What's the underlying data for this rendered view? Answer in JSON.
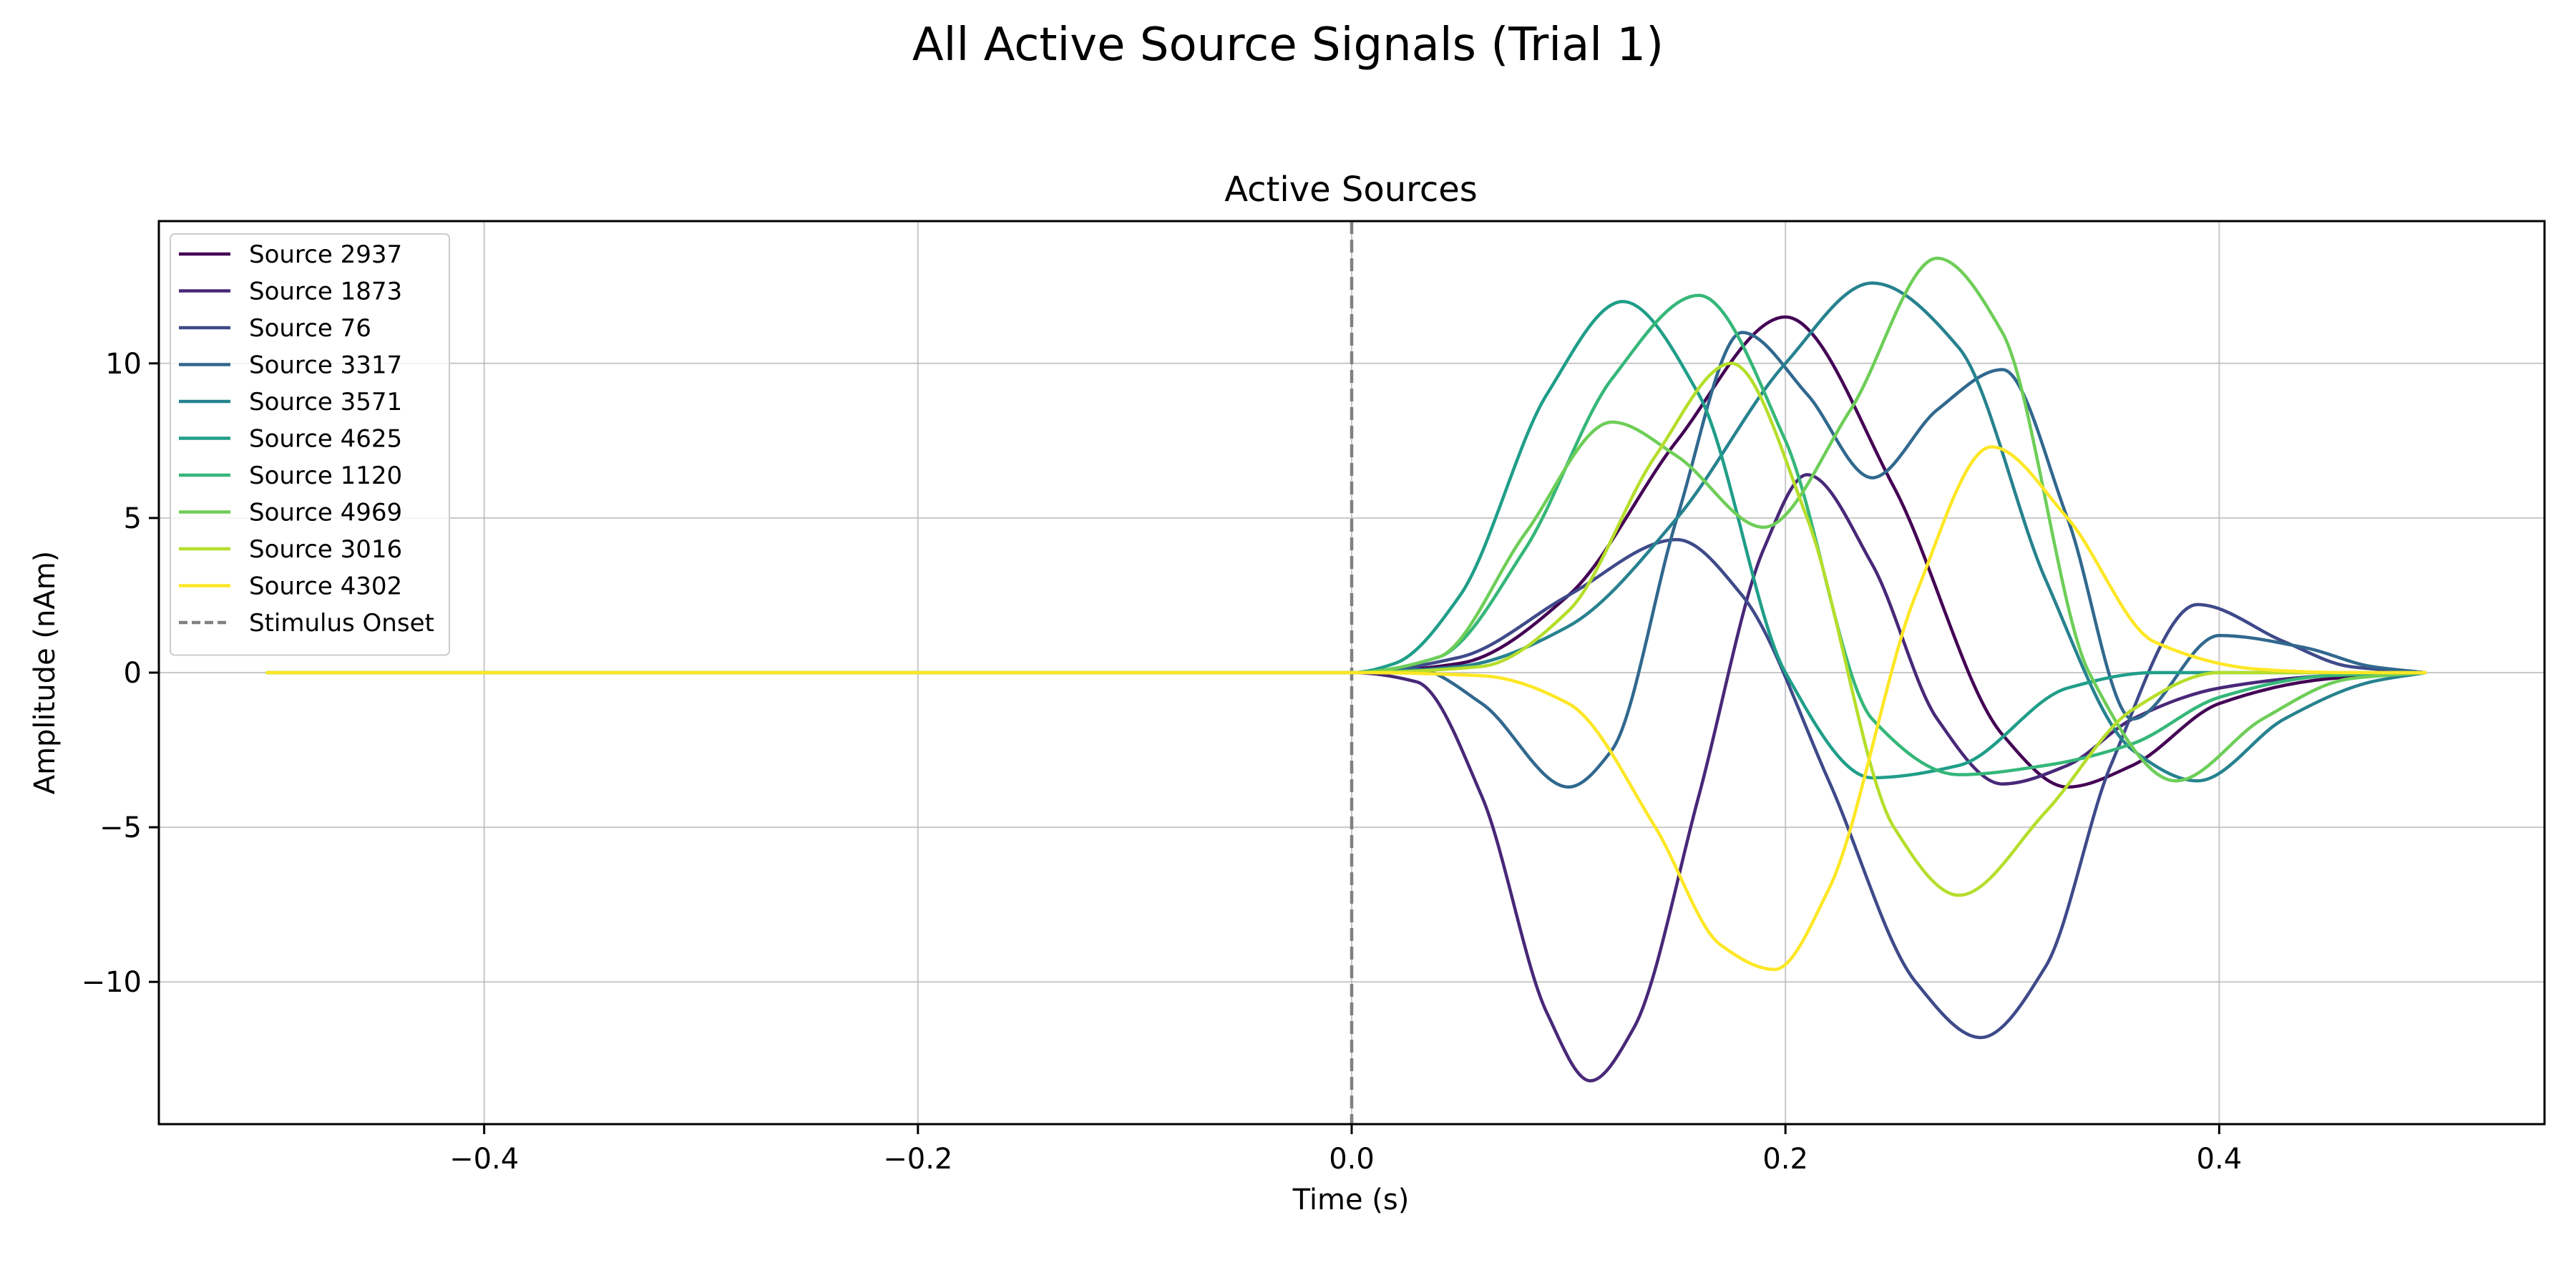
{
  "figure": {
    "suptitle": "All Active Source Signals (Trial 1)"
  },
  "chart_data": {
    "type": "line",
    "title": "Active Sources",
    "xlabel": "Time (s)",
    "ylabel": "Amplitude (nAm)",
    "xlim": [
      -0.55,
      0.55
    ],
    "ylim": [
      -14.6,
      14.6
    ],
    "xticks": [
      -0.4,
      -0.2,
      0.0,
      0.2,
      0.4
    ],
    "xtick_labels": [
      "−0.4",
      "−0.2",
      "0.0",
      "0.2",
      "0.4"
    ],
    "yticks": [
      -10,
      -5,
      0,
      5,
      10
    ],
    "ytick_labels": [
      "−10",
      "−5",
      "0",
      "5",
      "10"
    ],
    "grid": true,
    "legend_placement": "upper-left",
    "stimulus_onset": {
      "name": "Stimulus Onset",
      "x": 0.0,
      "color": "#808080",
      "style": "dashed"
    },
    "series": [
      {
        "name": "Source 2937",
        "color": "#440154",
        "x": [
          -0.5,
          0.0,
          0.05,
          0.1,
          0.15,
          0.2,
          0.25,
          0.3,
          0.33,
          0.36,
          0.4,
          0.45,
          0.495
        ],
        "y": [
          0,
          0,
          0.3,
          2.5,
          7.5,
          11.5,
          6.0,
          -2.0,
          -3.7,
          -3.0,
          -1.0,
          -0.2,
          0
        ]
      },
      {
        "name": "Source 1873",
        "color": "#482878",
        "x": [
          -0.5,
          0.0,
          0.03,
          0.06,
          0.09,
          0.11,
          0.13,
          0.16,
          0.19,
          0.21,
          0.24,
          0.27,
          0.3,
          0.33,
          0.36,
          0.4,
          0.45,
          0.495
        ],
        "y": [
          0,
          0,
          -0.3,
          -4.0,
          -11.0,
          -13.2,
          -11.5,
          -4.0,
          4.0,
          6.4,
          3.5,
          -1.5,
          -3.6,
          -3.0,
          -1.5,
          -0.5,
          -0.1,
          0
        ]
      },
      {
        "name": "Source 76",
        "color": "#3e4a89",
        "x": [
          -0.5,
          0.0,
          0.05,
          0.1,
          0.15,
          0.18,
          0.22,
          0.26,
          0.29,
          0.32,
          0.35,
          0.39,
          0.43,
          0.46,
          0.495
        ],
        "y": [
          0,
          0,
          0.5,
          2.5,
          4.3,
          2.5,
          -3.5,
          -10.0,
          -11.8,
          -9.5,
          -3.0,
          2.2,
          1.0,
          0.2,
          0
        ]
      },
      {
        "name": "Source 3317",
        "color": "#31688e",
        "x": [
          -0.5,
          0.0,
          0.03,
          0.06,
          0.1,
          0.12,
          0.15,
          0.18,
          0.21,
          0.24,
          0.27,
          0.3,
          0.33,
          0.36,
          0.4,
          0.44,
          0.47,
          0.495
        ],
        "y": [
          0,
          0,
          0.1,
          -1.0,
          -3.7,
          -2.5,
          5.0,
          11.0,
          9.0,
          6.3,
          8.5,
          9.8,
          5.0,
          -1.5,
          1.2,
          0.8,
          0.2,
          0
        ]
      },
      {
        "name": "Source 3571",
        "color": "#26828e",
        "x": [
          -0.5,
          0.0,
          0.05,
          0.1,
          0.15,
          0.2,
          0.24,
          0.28,
          0.32,
          0.36,
          0.39,
          0.43,
          0.47,
          0.495
        ],
        "y": [
          0,
          0,
          0.2,
          1.5,
          5.0,
          10.0,
          12.6,
          10.5,
          3.0,
          -2.5,
          -3.5,
          -1.5,
          -0.3,
          0
        ]
      },
      {
        "name": "Source 4625",
        "color": "#1f9e89",
        "x": [
          -0.5,
          0.0,
          0.02,
          0.05,
          0.09,
          0.125,
          0.16,
          0.2,
          0.24,
          0.28,
          0.33,
          0.37,
          0.42,
          0.46,
          0.495
        ],
        "y": [
          0,
          0,
          0.3,
          2.5,
          9.0,
          12.0,
          9.0,
          0.0,
          -3.4,
          -3.0,
          -0.5,
          0.0,
          0.0,
          0.0,
          0
        ]
      },
      {
        "name": "Source 1120",
        "color": "#35b779",
        "x": [
          -0.5,
          0.0,
          0.04,
          0.08,
          0.12,
          0.16,
          0.2,
          0.24,
          0.28,
          0.32,
          0.36,
          0.4,
          0.45,
          0.495
        ],
        "y": [
          0,
          0,
          0.5,
          4.0,
          9.5,
          12.2,
          7.5,
          -1.5,
          -3.3,
          -3.0,
          -2.3,
          -0.8,
          -0.1,
          0
        ]
      },
      {
        "name": "Source 4969",
        "color": "#6ece58",
        "x": [
          -0.5,
          0.0,
          0.04,
          0.08,
          0.12,
          0.15,
          0.19,
          0.23,
          0.27,
          0.3,
          0.34,
          0.38,
          0.42,
          0.46,
          0.495
        ],
        "y": [
          0,
          0,
          0.5,
          4.5,
          8.1,
          7.0,
          4.7,
          8.5,
          13.4,
          11.0,
          0.0,
          -3.5,
          -1.5,
          -0.2,
          0
        ]
      },
      {
        "name": "Source 3016",
        "color": "#b5de2b",
        "x": [
          -0.5,
          0.0,
          0.06,
          0.1,
          0.14,
          0.175,
          0.21,
          0.25,
          0.28,
          0.32,
          0.36,
          0.4,
          0.45,
          0.495
        ],
        "y": [
          0,
          0,
          0.2,
          2.0,
          7.0,
          10.0,
          5.0,
          -5.0,
          -7.2,
          -4.5,
          -1.2,
          0.0,
          0.0,
          0
        ]
      },
      {
        "name": "Source 4302",
        "color": "#fde725",
        "x": [
          -0.5,
          0.0,
          0.06,
          0.1,
          0.14,
          0.17,
          0.195,
          0.22,
          0.26,
          0.295,
          0.33,
          0.37,
          0.42,
          0.46,
          0.495
        ],
        "y": [
          0,
          0,
          -0.1,
          -1.0,
          -5.0,
          -8.8,
          -9.6,
          -7.0,
          2.5,
          7.3,
          5.0,
          1.0,
          0.1,
          0.0,
          0
        ]
      }
    ]
  }
}
